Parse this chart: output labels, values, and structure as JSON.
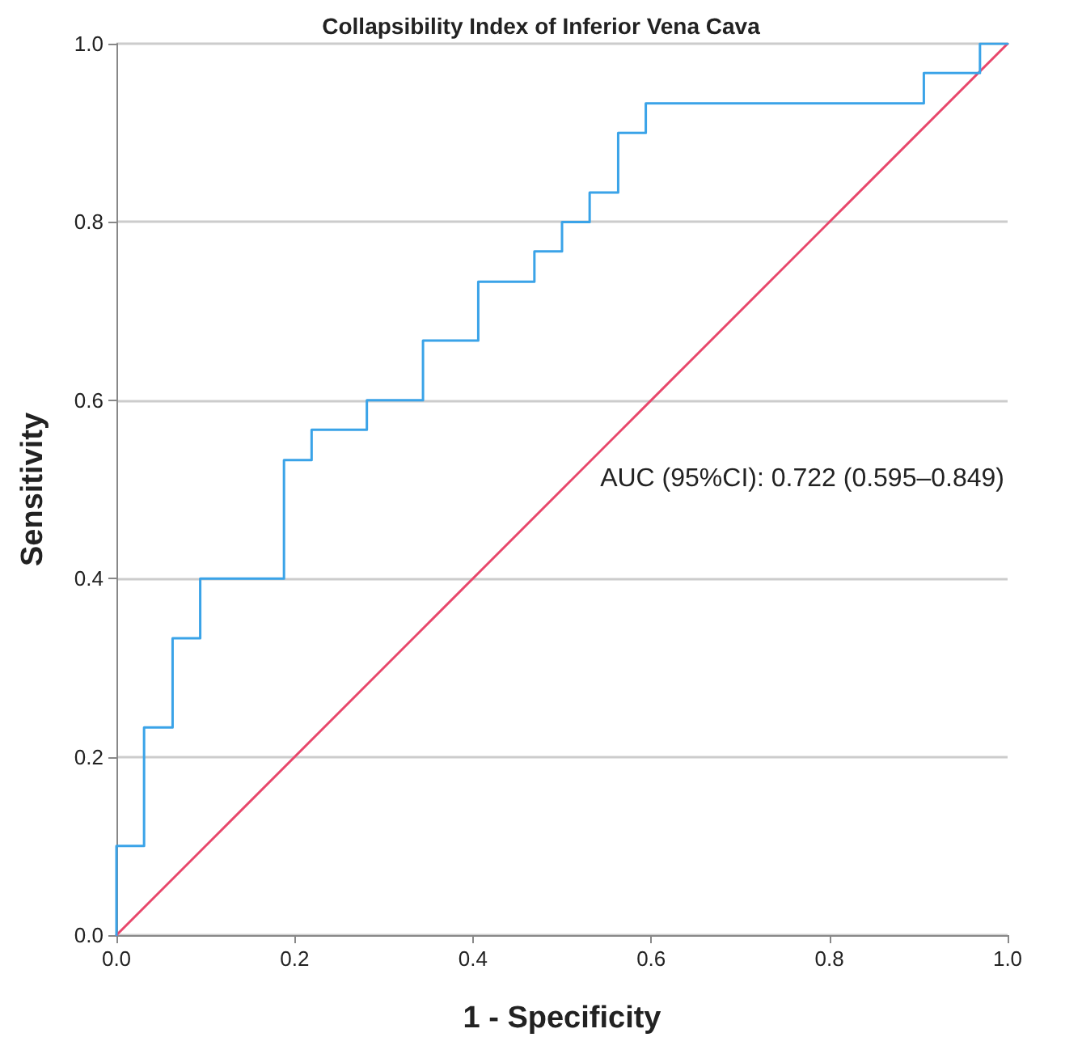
{
  "chart_data": {
    "type": "step",
    "title": "Collapsibility Index of Inferior Vena Cava",
    "xlabel": "1 - Specificity",
    "ylabel": "Sensitivity",
    "series": [
      {
        "color": "#3aa3e8",
        "x": [
          0,
          0,
          0.031,
          0.063,
          0.094,
          0.188,
          0.219,
          0.281,
          0.344,
          0.406,
          0.469,
          0.5,
          0.531,
          0.563,
          0.594,
          0.906,
          0.969,
          1.0
        ],
        "values": [
          0,
          0.1,
          0.233,
          0.333,
          0.4,
          0.533,
          0.567,
          0.6,
          0.667,
          0.733,
          0.767,
          0.8,
          0.833,
          0.9,
          0.933,
          0.967,
          1.0,
          1.0
        ]
      },
      {
        "type": "line",
        "color": "#e8476b",
        "x": [
          0,
          1
        ],
        "values": [
          0,
          1
        ]
      }
    ],
    "annotations": [
      "AUC (95%CI): 0.722 (0.595–0.849)"
    ],
    "xlim": [
      0,
      1
    ],
    "ylim": [
      0,
      1
    ],
    "xticks": [
      {
        "value": 0,
        "label": "0.0"
      },
      {
        "value": 0.2,
        "label": "0.2"
      },
      {
        "value": 0.4,
        "label": "0.4"
      },
      {
        "value": 0.6,
        "label": "0.6"
      },
      {
        "value": 0.8,
        "label": "0.8"
      },
      {
        "value": 1,
        "label": "1.0"
      }
    ],
    "yticks": [
      {
        "value": 0,
        "label": "0.0"
      },
      {
        "value": 0.2,
        "label": "0.2"
      },
      {
        "value": 0.4,
        "label": "0.4"
      },
      {
        "value": 0.6,
        "label": "0.6"
      },
      {
        "value": 0.8,
        "label": "0.8"
      },
      {
        "value": 1,
        "label": "1.0"
      }
    ],
    "grid": "y",
    "marker": "none",
    "line_style": "solid"
  }
}
